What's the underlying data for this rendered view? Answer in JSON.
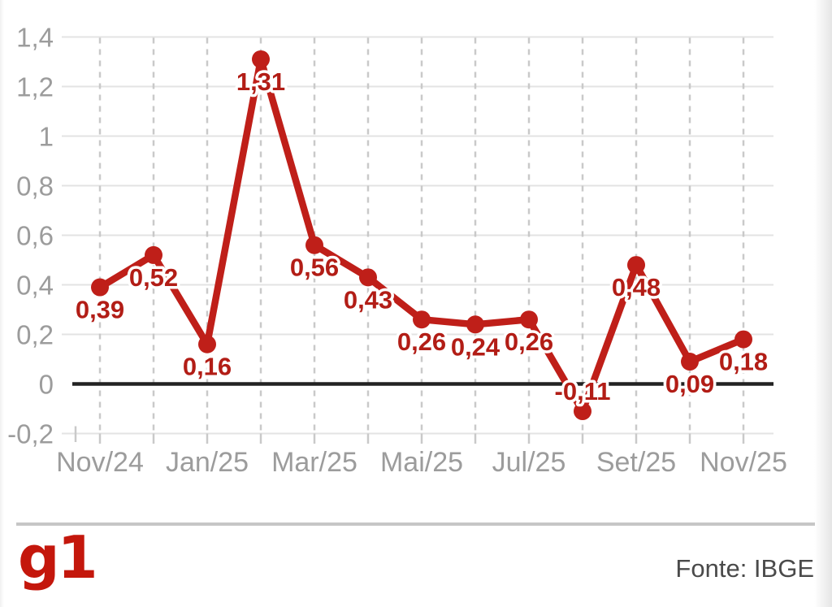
{
  "chart_data": {
    "type": "line",
    "title": "",
    "values": [
      0.39,
      0.52,
      0.16,
      1.31,
      0.56,
      0.43,
      0.26,
      0.24,
      0.26,
      -0.11,
      0.48,
      0.09,
      0.18
    ],
    "point_labels": [
      "0,39",
      "0,52",
      "0,16",
      "1,31",
      "0,56",
      "0,43",
      "0,26",
      "0,24",
      "0,26",
      "-0,11",
      "0,48",
      "0,09",
      "0,18"
    ],
    "label_positions": [
      "below",
      "below",
      "below",
      "below",
      "below",
      "below",
      "below",
      "below",
      "below",
      "above",
      "below",
      "below",
      "below"
    ],
    "x_tick_labels": [
      "Nov/24",
      "Jan/25",
      "Mar/25",
      "Mai/25",
      "Jul/25",
      "Set/25",
      "Nov/25"
    ],
    "x_tick_point_indices": [
      0,
      2,
      4,
      6,
      8,
      10,
      12
    ],
    "y_tick_labels": [
      "1,4",
      "1,2",
      "1",
      "0,8",
      "0,6",
      "0,4",
      "0,2",
      "0",
      "-0,2"
    ],
    "y_tick_values": [
      1.4,
      1.2,
      1.0,
      0.8,
      0.6,
      0.4,
      0.2,
      0.0,
      -0.2
    ],
    "ylim": [
      -0.2,
      1.4
    ],
    "grid": {
      "horizontal": true,
      "vertical": "dashed"
    },
    "zero_line": true,
    "legend": null,
    "colors": {
      "line": "#bf1f19",
      "point": "#bf1f19",
      "data_label": "#b21d16",
      "axis_label": "#9c9c9c",
      "gridline": "#e3e3e3",
      "dashed_gridline": "#c9c9c9",
      "tick": "#c9c9c9",
      "zero_line": "#222222",
      "label_halo": "#ffffff"
    }
  },
  "footer": {
    "logo_text": "g1",
    "logo_color": "#c4170c",
    "source_label": "Fonte: IBGE"
  }
}
